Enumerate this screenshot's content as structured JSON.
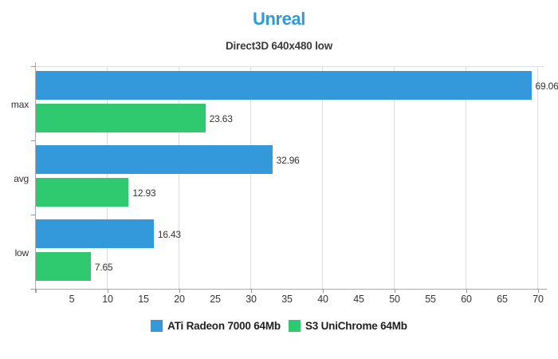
{
  "chart_data": {
    "type": "bar",
    "orientation": "horizontal",
    "title": "Unreal",
    "subtitle": "Direct3D 640x480 low",
    "categories": [
      "max",
      "avg",
      "low"
    ],
    "series": [
      {
        "name": "ATi Radeon 7000 64Mb",
        "color": "#3499db",
        "values": [
          69.06,
          32.96,
          16.43
        ]
      },
      {
        "name": "S3 UniChrome 64Mb",
        "color": "#2fca70",
        "values": [
          23.63,
          12.93,
          7.65
        ]
      }
    ],
    "xlim": [
      0,
      70.78
    ],
    "xticks": [
      5,
      10,
      15,
      20,
      25,
      30,
      35,
      40,
      45,
      50,
      55,
      60,
      65,
      70
    ],
    "gridlines_at": [
      10,
      20,
      30,
      40,
      50,
      60,
      70
    ],
    "grid": true,
    "value_labels": true,
    "legend_position": "bottom"
  },
  "colors": {
    "title": "#2c9bd9",
    "subtitle": "#3a3a3a",
    "axis": "#aaaaaa",
    "grid": "#dddddd",
    "text": "#333333"
  }
}
